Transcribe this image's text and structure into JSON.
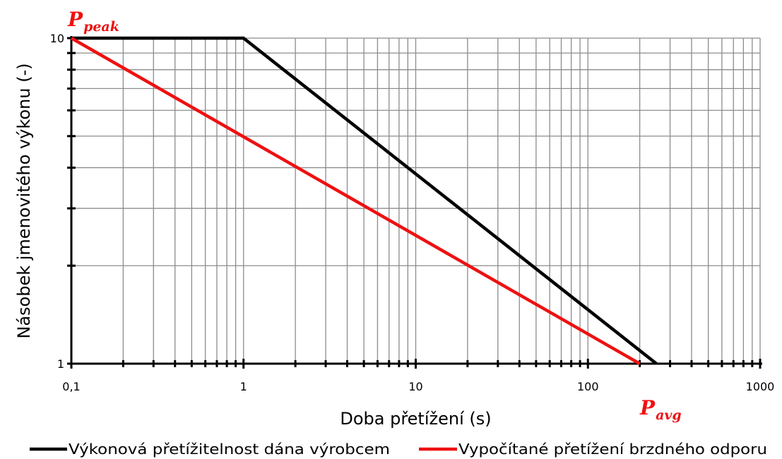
{
  "chart_data": {
    "type": "line",
    "xscale": "log",
    "yscale": "log",
    "xlim": [
      0.1,
      1000
    ],
    "ylim": [
      1,
      10
    ],
    "grid": true,
    "legend_position": "bottom",
    "xlabel": "Doba přetížení (s)",
    "ylabel": "Násobek jmenovitého výkonu (-)",
    "x_tick_labels": [
      "0,1",
      "1",
      "10",
      "100",
      "1000"
    ],
    "y_tick_labels": [
      "1",
      "10"
    ],
    "series": [
      {
        "name": "Výkonová přetížitelnost dána výrobcem",
        "color": "#000000",
        "x": [
          0.1,
          1,
          250
        ],
        "y": [
          10,
          10,
          1
        ]
      },
      {
        "name": "Vypočítané přetížení brzdného odporu",
        "color": "#ee1111",
        "x": [
          0.1,
          200
        ],
        "y": [
          10,
          1
        ]
      }
    ],
    "annotations": [
      {
        "main": "P",
        "sub": "peak",
        "color": "#ee1111"
      },
      {
        "main": "P",
        "sub": "avg",
        "color": "#ee1111"
      }
    ]
  }
}
